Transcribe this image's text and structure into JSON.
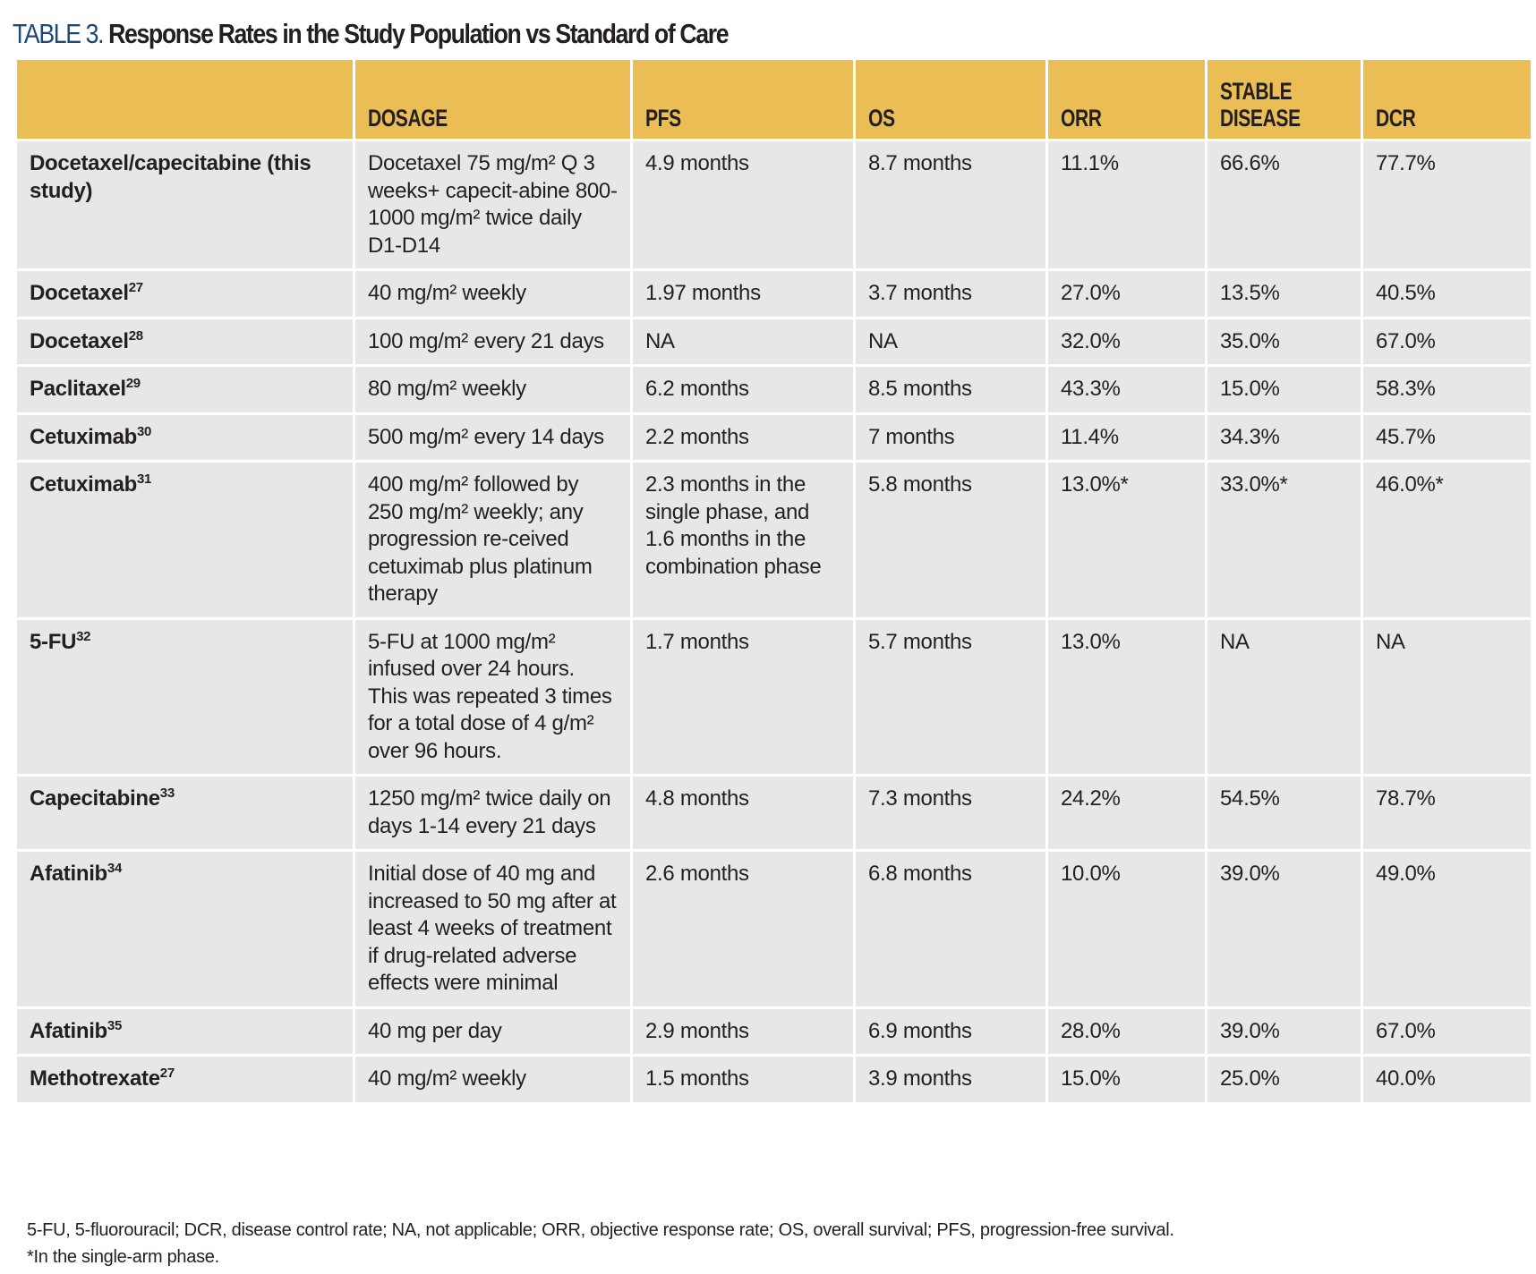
{
  "title": {
    "label": "TABLE 3.",
    "text": "Response Rates in the Study Population vs Standard of Care"
  },
  "headers": [
    "",
    "DOSAGE",
    "PFS",
    "OS",
    "ORR",
    "STABLE DISEASE",
    "DCR"
  ],
  "rows": [
    {
      "drug": "Docetaxel/capecitabine (this study)",
      "ref": "",
      "dosage": "Docetaxel 75 mg/m² Q 3 weeks+ capecit-abine 800-1000 mg/m² twice daily D1-D14",
      "pfs": "4.9 months",
      "os": "8.7 months",
      "orr": "11.1%",
      "sd": "66.6%",
      "dcr": "77.7%"
    },
    {
      "drug": "Docetaxel",
      "ref": "27",
      "dosage": "40 mg/m² weekly",
      "pfs": "1.97 months",
      "os": "3.7 months",
      "orr": "27.0%",
      "sd": "13.5%",
      "dcr": "40.5%"
    },
    {
      "drug": "Docetaxel",
      "ref": "28",
      "dosage": "100 mg/m² every 21 days",
      "pfs": "NA",
      "os": "NA",
      "orr": "32.0%",
      "sd": "35.0%",
      "dcr": "67.0%"
    },
    {
      "drug": "Paclitaxel",
      "ref": "29",
      "dosage": "80 mg/m² weekly",
      "pfs": "6.2 months",
      "os": "8.5 months",
      "orr": "43.3%",
      "sd": "15.0%",
      "dcr": "58.3%"
    },
    {
      "drug": "Cetuximab",
      "ref": "30",
      "dosage": "500 mg/m² every 14 days",
      "pfs": "2.2 months",
      "os": "7 months",
      "orr": "11.4%",
      "sd": "34.3%",
      "dcr": "45.7%"
    },
    {
      "drug": "Cetuximab",
      "ref": "31",
      "dosage": "400 mg/m² followed by 250 mg/m² weekly; any progression re-ceived cetuximab plus platinum therapy",
      "pfs": "2.3 months in the single phase, and 1.6 months in the combination phase",
      "os": "5.8 months",
      "orr": "13.0%*",
      "sd": "33.0%*",
      "dcr": "46.0%*"
    },
    {
      "drug": "5-FU",
      "ref": "32",
      "dosage": "5-FU at 1000 mg/m² infused over 24 hours. This was repeated 3 times for a total dose of 4 g/m² over 96 hours.",
      "pfs": "1.7 months",
      "os": "5.7 months",
      "orr": "13.0%",
      "sd": "NA",
      "dcr": "NA"
    },
    {
      "drug": "Capecitabine",
      "ref": "33",
      "dosage": "1250 mg/m² twice daily on days 1-14 every 21 days",
      "pfs": "4.8 months",
      "os": "7.3 months",
      "orr": "24.2%",
      "sd": "54.5%",
      "dcr": "78.7%"
    },
    {
      "drug": "Afatinib",
      "ref": "34",
      "dosage": "Initial dose of 40 mg and increased to 50 mg after at least 4 weeks of treatment if drug-related adverse effects were minimal",
      "pfs": "2.6 months",
      "os": "6.8 months",
      "orr": "10.0%",
      "sd": "39.0%",
      "dcr": "49.0%"
    },
    {
      "drug": "Afatinib",
      "ref": "35",
      "dosage": "40 mg per day",
      "pfs": "2.9 months",
      "os": "6.9 months",
      "orr": "28.0%",
      "sd": "39.0%",
      "dcr": "67.0%"
    },
    {
      "drug": "Methotrexate",
      "ref": "27",
      "dosage": "40 mg/m² weekly",
      "pfs": "1.5 months",
      "os": "3.9 months",
      "orr": "15.0%",
      "sd": "25.0%",
      "dcr": "40.0%"
    }
  ],
  "footnotes": [
    "5-FU, 5-fluorouracil; DCR, disease control rate; NA, not applicable; ORR, objective response rate; OS, overall survival; PFS, progression-free survival.",
    "*In the single-arm phase."
  ],
  "colors": {
    "header_bg": "#ebbd55",
    "cell_bg": "#e7e7e7",
    "title_label": "#1b4a7a"
  }
}
